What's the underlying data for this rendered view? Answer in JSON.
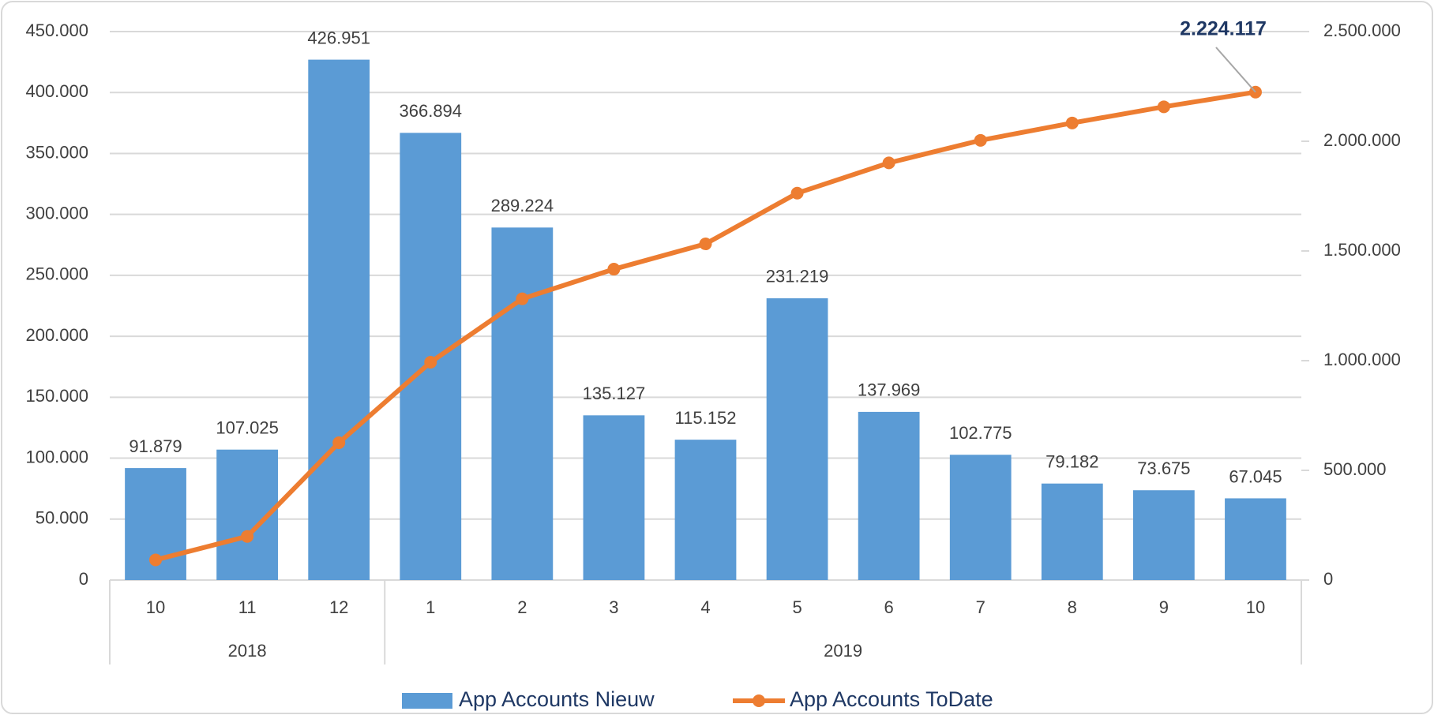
{
  "chart_data": {
    "type": "bar",
    "categories": [
      "10",
      "11",
      "12",
      "1",
      "2",
      "3",
      "4",
      "5",
      "6",
      "7",
      "8",
      "9",
      "10"
    ],
    "category_groups": [
      "2018",
      "2018",
      "2018",
      "2019",
      "2019",
      "2019",
      "2019",
      "2019",
      "2019",
      "2019",
      "2019",
      "2019",
      "2019"
    ],
    "series": [
      {
        "name": "App Accounts Nieuw",
        "type": "bar",
        "color": "#5b9bd5",
        "values": [
          91879,
          107025,
          426951,
          366894,
          289224,
          135127,
          115152,
          231219,
          137969,
          102775,
          79182,
          73675,
          67045
        ],
        "value_labels": [
          "91.879",
          "107.025",
          "426.951",
          "366.894",
          "289.224",
          "135.127",
          "115.152",
          "231.219",
          "137.969",
          "102.775",
          "79.182",
          "73.675",
          "67.045"
        ]
      },
      {
        "name": "App Accounts ToDate",
        "type": "line",
        "axis": "y2",
        "color": "#ed7d31",
        "values": [
          91879,
          198904,
          625855,
          992749,
          1281973,
          1417100,
          1532252,
          1763471,
          1901440,
          2004215,
          2083397,
          2157072,
          2224117
        ],
        "value_labels": [
          null,
          null,
          null,
          null,
          null,
          null,
          null,
          null,
          null,
          null,
          null,
          null,
          "2.224.117"
        ]
      }
    ],
    "ylim": [
      0,
      450000
    ],
    "yticks": [
      0,
      {
        "value": 50000,
        "label": "50.000"
      },
      {
        "value": 100000,
        "label": "100.000"
      },
      {
        "value": 150000,
        "label": "150.000"
      },
      {
        "value": 200000,
        "label": "200.000"
      },
      {
        "value": 250000,
        "label": "250.000"
      },
      {
        "value": 300000,
        "label": "300.000"
      },
      {
        "value": 350000,
        "label": "350.000"
      },
      {
        "value": 400000,
        "label": "400.000"
      },
      {
        "value": 450000,
        "label": "450.000"
      }
    ],
    "y2lim": [
      0,
      2500000
    ],
    "y2ticks": [
      0,
      {
        "value": 500000,
        "label": "500.000"
      },
      {
        "value": 1000000,
        "label": "1.000.000"
      },
      {
        "value": 1500000,
        "label": "1.500.000"
      },
      {
        "value": 2000000,
        "label": "2.000.000"
      },
      {
        "value": 2500000,
        "label": "2.500.000"
      }
    ],
    "grid": true,
    "legend": "bottom"
  }
}
